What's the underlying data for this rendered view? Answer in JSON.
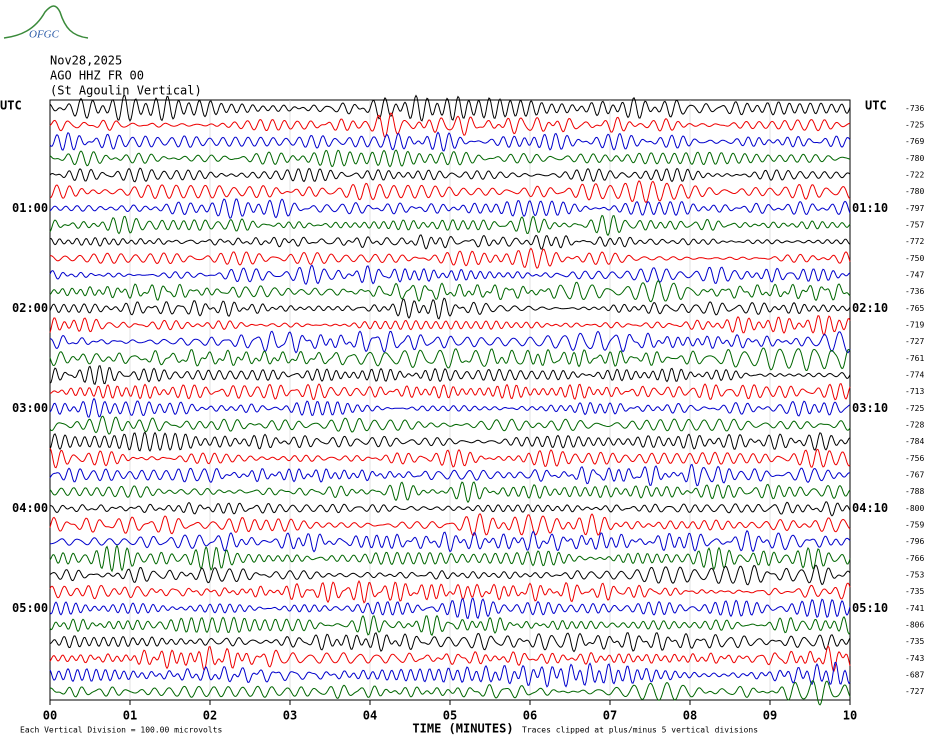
{
  "logo": {
    "text": "OFGC"
  },
  "header": {
    "date": "Nov28,2025",
    "station": "AGO HHZ FR 00",
    "description": "(St Agoulin Vertical)"
  },
  "left_axis": {
    "title": "UTC",
    "labels": [
      "01:00",
      "02:00",
      "03:00",
      "04:00",
      "05:00"
    ]
  },
  "right_axis": {
    "title": "UTC",
    "labels": [
      "01:10",
      "02:10",
      "03:10",
      "04:10",
      "05:10"
    ]
  },
  "trace_offsets": [
    -736,
    -725,
    -769,
    -780,
    -722,
    -780,
    -797,
    -757,
    -772,
    -750,
    -747,
    -736,
    -765,
    -719,
    -727,
    -761,
    -774,
    -713,
    -725,
    -728,
    -784,
    -756,
    -767,
    -788,
    -800,
    -759,
    -796,
    -766,
    -753,
    -735,
    -741,
    -806,
    -735,
    -743,
    -687,
    -727
  ],
  "x_axis": {
    "ticks": [
      "00",
      "01",
      "02",
      "03",
      "04",
      "05",
      "06",
      "07",
      "08",
      "09",
      "10"
    ],
    "title": "TIME (MINUTES)"
  },
  "footer": {
    "scale": "Each Vertical Division =  100.00 microvolts",
    "clip": "Traces clipped at plus/minus 5 vertical divisions"
  }
}
